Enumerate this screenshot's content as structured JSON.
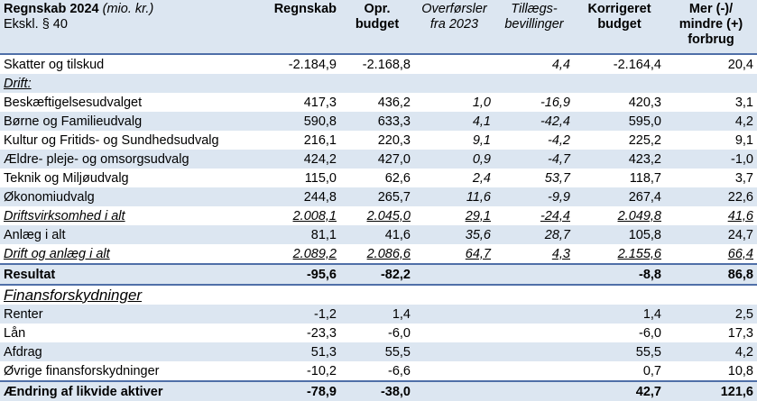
{
  "header": {
    "title": "Regnskab 2024",
    "title_unit": "(mio. kr.)",
    "subtitle": "Ekskl. § 40",
    "col_regnskab": "Regnskab",
    "col_opr_1": "Opr.",
    "col_opr_2": "budget",
    "col_overf_1": "Overførsler",
    "col_overf_2": "fra 2023",
    "col_tillaeg_1": "Tillægs-",
    "col_tillaeg_2": "bevillinger",
    "col_korr_1": "Korrigeret",
    "col_korr_2": "budget",
    "col_mer_1": "Mer (-)/",
    "col_mer_2": "mindre (+)",
    "col_mer_3": "forbrug"
  },
  "rows": [
    {
      "label": "Skatter og tilskud",
      "regnskab": "-2.184,9",
      "opr": "-2.168,8",
      "overf": "",
      "tillaeg": "4,4",
      "korr": "-2.164,4",
      "mer": "20,4"
    },
    {
      "label": "Drift:",
      "regnskab": "",
      "opr": "",
      "overf": "",
      "tillaeg": "",
      "korr": "",
      "mer": ""
    },
    {
      "label": "Beskæftigelsesudvalget",
      "regnskab": "417,3",
      "opr": "436,2",
      "overf": "1,0",
      "tillaeg": "-16,9",
      "korr": "420,3",
      "mer": "3,1"
    },
    {
      "label": "Børne og Familieudvalg",
      "regnskab": "590,8",
      "opr": "633,3",
      "overf": "4,1",
      "tillaeg": "-42,4",
      "korr": "595,0",
      "mer": "4,2"
    },
    {
      "label": "Kultur og Fritids- og Sundhedsudvalg",
      "regnskab": "216,1",
      "opr": "220,3",
      "overf": "9,1",
      "tillaeg": "-4,2",
      "korr": "225,2",
      "mer": "9,1"
    },
    {
      "label": "Ældre- pleje- og omsorgsudvalg",
      "regnskab": "424,2",
      "opr": "427,0",
      "overf": "0,9",
      "tillaeg": "-4,7",
      "korr": "423,2",
      "mer": "-1,0"
    },
    {
      "label": "Teknik og Miljøudvalg",
      "regnskab": "115,0",
      "opr": "62,6",
      "overf": "2,4",
      "tillaeg": "53,7",
      "korr": "118,7",
      "mer": "3,7"
    },
    {
      "label": "Økonomiudvalg",
      "regnskab": "244,8",
      "opr": "265,7",
      "overf": "11,6",
      "tillaeg": "-9,9",
      "korr": "267,4",
      "mer": "22,6"
    },
    {
      "label": "Driftsvirksomhed i alt",
      "regnskab": "2.008,1",
      "opr": "2.045,0",
      "overf": "29,1",
      "tillaeg": "-24,4",
      "korr": "2.049,8",
      "mer": "41,6"
    },
    {
      "label": "Anlæg i alt",
      "regnskab": "81,1",
      "opr": "41,6",
      "overf": "35,6",
      "tillaeg": "28,7",
      "korr": "105,8",
      "mer": "24,7"
    },
    {
      "label": "Drift og anlæg i alt",
      "regnskab": "2.089,2",
      "opr": "2.086,6",
      "overf": "64,7",
      "tillaeg": "4,3",
      "korr": "2.155,6",
      "mer": "66,4"
    },
    {
      "label": "Resultat",
      "regnskab": "-95,6",
      "opr": "-82,2",
      "overf": "",
      "tillaeg": "",
      "korr": "-8,8",
      "mer": "86,8"
    },
    {
      "label": "Finansforskydninger",
      "regnskab": "",
      "opr": "",
      "overf": "",
      "tillaeg": "",
      "korr": "",
      "mer": ""
    },
    {
      "label": "Renter",
      "regnskab": "-1,2",
      "opr": "1,4",
      "overf": "",
      "tillaeg": "",
      "korr": "1,4",
      "mer": "2,5"
    },
    {
      "label": "Lån",
      "regnskab": "-23,3",
      "opr": "-6,0",
      "overf": "",
      "tillaeg": "",
      "korr": "-6,0",
      "mer": "17,3"
    },
    {
      "label": "Afdrag",
      "regnskab": "51,3",
      "opr": "55,5",
      "overf": "",
      "tillaeg": "",
      "korr": "55,5",
      "mer": "4,2"
    },
    {
      "label": "Øvrige finansforskydninger",
      "regnskab": "-10,2",
      "opr": "-6,6",
      "overf": "",
      "tillaeg": "",
      "korr": "0,7",
      "mer": "10,8"
    },
    {
      "label": "Ændring af likvide aktiver",
      "regnskab": "-78,9",
      "opr": "-38,0",
      "overf": "",
      "tillaeg": "",
      "korr": "42,7",
      "mer": "121,6"
    }
  ]
}
